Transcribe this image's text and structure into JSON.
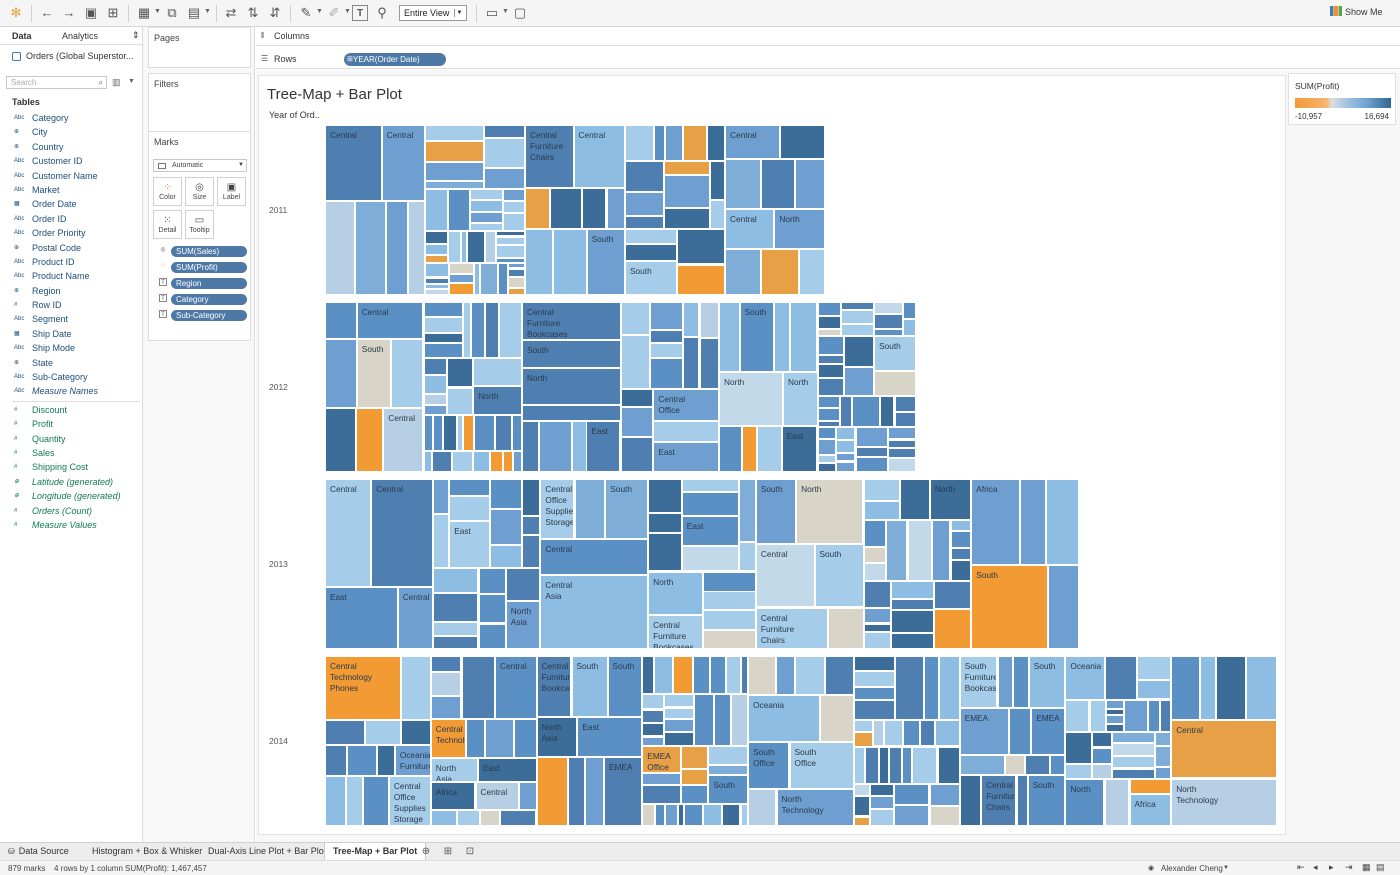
{
  "toolbar": {
    "fit": "Entire View",
    "show_me": "Show Me"
  },
  "data_pane": {
    "tab_data": "Data",
    "tab_analytics": "Analytics",
    "datasource": "Orders (Global Superstor...",
    "search_placeholder": "Search",
    "tables_label": "Tables",
    "dimensions": [
      {
        "type": "Abc",
        "name": "Category"
      },
      {
        "type": "geo",
        "name": "City"
      },
      {
        "type": "geo",
        "name": "Country"
      },
      {
        "type": "Abc",
        "name": "Customer ID"
      },
      {
        "type": "Abc",
        "name": "Customer Name"
      },
      {
        "type": "Abc",
        "name": "Market"
      },
      {
        "type": "date",
        "name": "Order Date"
      },
      {
        "type": "Abc",
        "name": "Order ID"
      },
      {
        "type": "Abc",
        "name": "Order Priority"
      },
      {
        "type": "geo",
        "name": "Postal Code"
      },
      {
        "type": "Abc",
        "name": "Product ID"
      },
      {
        "type": "Abc",
        "name": "Product Name"
      },
      {
        "type": "geo",
        "name": "Region"
      },
      {
        "type": "#",
        "name": "Row ID"
      },
      {
        "type": "Abc",
        "name": "Segment"
      },
      {
        "type": "date",
        "name": "Ship Date"
      },
      {
        "type": "Abc",
        "name": "Ship Mode"
      },
      {
        "type": "geo",
        "name": "State"
      },
      {
        "type": "Abc",
        "name": "Sub-Category"
      },
      {
        "type": "Abc",
        "name": "Measure Names",
        "italic": true
      }
    ],
    "measures": [
      {
        "type": "#",
        "name": "Discount"
      },
      {
        "type": "#",
        "name": "Profit"
      },
      {
        "type": "#",
        "name": "Quantity"
      },
      {
        "type": "#",
        "name": "Sales"
      },
      {
        "type": "#",
        "name": "Shipping Cost"
      },
      {
        "type": "geo",
        "name": "Latitude (generated)",
        "italic": true
      },
      {
        "type": "geo",
        "name": "Longitude (generated)",
        "italic": true
      },
      {
        "type": "#",
        "name": "Orders (Count)",
        "italic": true
      },
      {
        "type": "#",
        "name": "Measure Values",
        "italic": true
      }
    ]
  },
  "cards": {
    "pages": "Pages",
    "filters": "Filters",
    "marks": "Marks",
    "mark_type": "Automatic",
    "btn_color": "Color",
    "btn_size": "Size",
    "btn_label": "Label",
    "btn_detail": "Detail",
    "btn_tooltip": "Tooltip",
    "mark_pills": [
      "SUM(Sales)",
      "SUM(Profit)",
      "Region",
      "Category",
      "Sub-Category"
    ]
  },
  "shelves": {
    "columns": "Columns",
    "rows": "Rows",
    "rows_pill": "YEAR(Order Date)"
  },
  "viz": {
    "title": "Tree-Map + Bar Plot",
    "row_header": "Year of Ord..",
    "years": [
      "2011",
      "2012",
      "2013",
      "2014"
    ],
    "labels_2011": [
      "Central",
      "Central",
      "Central\nFurniture\nChairs",
      "Central",
      "Central",
      "Central",
      "North",
      "South",
      "South"
    ],
    "labels_2012": [
      "Central",
      "Central\nFurniture\nBookcases",
      "South",
      "South",
      "South",
      "South",
      "North",
      "North",
      "North",
      "North",
      "Central\nOffice",
      "Central",
      "East",
      "East",
      "East"
    ],
    "labels_2013": [
      "Central",
      "Central",
      "Central\nOffice\nSupplies\nStorage",
      "South",
      "South",
      "North",
      "North",
      "Africa",
      "East",
      "East",
      "Central",
      "Central",
      "South",
      "South",
      "North",
      "Central\nAsia",
      "East",
      "Central",
      "North\nAsia",
      "Central\nFurniture\nChairs",
      "Central\nFurniture\nBookcases"
    ],
    "labels_2014": [
      "Central\nTechnology\nPhones",
      "Central",
      "Central\nFurniture\nBookcases",
      "South",
      "South",
      "South\nFurniture\nBookcases",
      "South",
      "Oceania",
      "Oceania",
      "EMEA",
      "EMEA",
      "North Asia",
      "East",
      "Central\nTechnology",
      "Central",
      "South\nOffice",
      "South\nOffice",
      "Oceania\nFurniture",
      "EMEA\nOffice",
      "EMEA",
      "North\nAsia",
      "East",
      "Central\nFurniture\nChairs",
      "South",
      "South",
      "Central\nOffice Supplies\nStorage",
      "North\nTechnology",
      "North",
      "Africa",
      "Central",
      "North\nTechnology",
      "Africa"
    ]
  },
  "legend": {
    "title": "SUM(Profit)",
    "min": "-10,957",
    "max": "16,694",
    "low_color": "#f28e2b",
    "high_color": "#2f6792"
  },
  "tabs": {
    "data_source": "Data Source",
    "sheets": [
      "Histogram + Box & Whisker",
      "Dual-Axis Line Plot + Bar Plot",
      "Tree-Map + Bar Plot"
    ]
  },
  "status": {
    "marks": "879 marks",
    "rows": "4 rows by 1 column",
    "sum": "SUM(Profit): 1,467,457",
    "user": "Alexander Cheng"
  }
}
